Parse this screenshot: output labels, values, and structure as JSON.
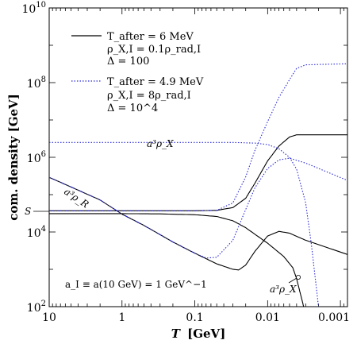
{
  "chart_data": {
    "type": "line",
    "xlabel_var": "T",
    "xlabel_unit": "[GeV]",
    "ylabel": "com. density [GeV]",
    "x_reversed": true,
    "x_scale": "log",
    "y_scale": "log",
    "xlim": [
      10,
      0.0008
    ],
    "ylim": [
      100,
      10000000000
    ],
    "x_ticks": [
      {
        "value": 10,
        "label": "10"
      },
      {
        "value": 1,
        "label": "1"
      },
      {
        "value": 0.1,
        "label": "0.1"
      },
      {
        "value": 0.01,
        "label": "0.01"
      },
      {
        "value": 0.001,
        "label": "0.001"
      }
    ],
    "y_ticks": [
      {
        "value": 100,
        "base": "10",
        "exp": "2"
      },
      {
        "value": 10000,
        "base": "10",
        "exp": "4"
      },
      {
        "value": 1000000,
        "base": "10",
        "exp": "6"
      },
      {
        "value": 100000000,
        "base": "10",
        "exp": "8"
      },
      {
        "value": 10000000000,
        "base": "10",
        "exp": "10"
      }
    ],
    "legend": {
      "position": "top-left",
      "entries": [
        {
          "style": "solid",
          "color": "#000000",
          "line1": "T_after = 6 MeV",
          "line2": "ρ_X,I = 0.1ρ_rad,I",
          "line3": "Δ = 100"
        },
        {
          "style": "dotted",
          "color": "#2b2bd6",
          "line1": "T_after = 4.9 MeV",
          "line2": "ρ_X,I = 8ρ_rad,I",
          "line3": "Δ = 10^4"
        }
      ]
    },
    "annotations": {
      "a3rhoX_upper": "a³ρ_X",
      "a3rhoR": "a³ρ_R",
      "S": "S",
      "a3rhoX_lower": "a³ρ_X",
      "normalization": "a_I ≡ a(10 GeV) = 1 GeV^−1"
    },
    "series": [
      {
        "name": "S",
        "style": "solid",
        "color": "#000000",
        "points": [
          [
            10,
            31000
          ],
          [
            1,
            31000
          ],
          [
            0.3,
            30500
          ],
          [
            0.1,
            29000
          ],
          [
            0.05,
            26000
          ],
          [
            0.03,
            20000
          ],
          [
            0.02,
            13000
          ],
          [
            0.01,
            5000
          ],
          [
            0.006,
            2200
          ],
          [
            0.0045,
            1100
          ],
          [
            0.004,
            560
          ],
          [
            0.0035,
            200
          ],
          [
            0.0032,
            100
          ]
        ]
      },
      {
        "name": "a³ρ_R",
        "style": "solid",
        "color": "#000000",
        "points": [
          [
            10,
            290000
          ],
          [
            5,
            160000
          ],
          [
            2,
            72000
          ],
          [
            1,
            30000
          ],
          [
            0.5,
            15000
          ],
          [
            0.2,
            5400
          ],
          [
            0.1,
            2700
          ],
          [
            0.05,
            1400
          ],
          [
            0.03,
            1000
          ],
          [
            0.025,
            960
          ],
          [
            0.02,
            1300
          ],
          [
            0.015,
            3000
          ],
          [
            0.01,
            7800
          ],
          [
            0.007,
            10400
          ],
          [
            0.005,
            9300
          ],
          [
            0.003,
            6000
          ],
          [
            0.0008,
            2500
          ]
        ]
      },
      {
        "name": "a³ρ_X",
        "style": "solid",
        "color": "#000000",
        "points": [
          [
            10,
            37000
          ],
          [
            1,
            37000
          ],
          [
            0.1,
            37000
          ],
          [
            0.05,
            38000
          ],
          [
            0.03,
            45000
          ],
          [
            0.02,
            80000
          ],
          [
            0.015,
            200000
          ],
          [
            0.01,
            800000
          ],
          [
            0.007,
            2000000
          ],
          [
            0.005,
            3500000
          ],
          [
            0.004,
            4000000
          ],
          [
            0.0008,
            4000000
          ]
        ]
      },
      {
        "name": "a³ρ_R",
        "style": "dotted",
        "color": "#2b2bd6",
        "points": [
          [
            10,
            290000
          ],
          [
            5,
            160000
          ],
          [
            2,
            72000
          ],
          [
            1,
            30000
          ],
          [
            0.5,
            15000
          ],
          [
            0.2,
            5400
          ],
          [
            0.1,
            2700
          ],
          [
            0.07,
            2000
          ],
          [
            0.05,
            2100
          ],
          [
            0.03,
            6000
          ],
          [
            0.02,
            40000
          ],
          [
            0.015,
            150000
          ],
          [
            0.01,
            500000
          ],
          [
            0.007,
            850000
          ],
          [
            0.005,
            950000
          ],
          [
            0.003,
            700000
          ],
          [
            0.0008,
            240000
          ]
        ]
      },
      {
        "name": "a³ρ_X",
        "style": "dotted",
        "color": "#2b2bd6",
        "points": [
          [
            10,
            2500000
          ],
          [
            1,
            2500000
          ],
          [
            0.1,
            2500000
          ],
          [
            0.03,
            2500000
          ],
          [
            0.015,
            2400000
          ],
          [
            0.01,
            2200000
          ],
          [
            0.007,
            1700000
          ],
          [
            0.005,
            1000000
          ],
          [
            0.004,
            480000
          ],
          [
            0.003,
            60000
          ],
          [
            0.0025,
            4500
          ],
          [
            0.002,
            100
          ]
        ]
      },
      {
        "name": "S",
        "style": "dotted",
        "color": "#2b2bd6",
        "points": [
          [
            10,
            37000
          ],
          [
            0.1,
            37000
          ],
          [
            0.05,
            38000
          ],
          [
            0.03,
            60000
          ],
          [
            0.02,
            300000
          ],
          [
            0.015,
            1500000
          ],
          [
            0.01,
            9000000
          ],
          [
            0.007,
            40000000
          ],
          [
            0.005,
            120000000
          ],
          [
            0.004,
            240000000
          ],
          [
            0.003,
            300000000
          ],
          [
            0.0008,
            320000000
          ]
        ]
      }
    ]
  }
}
